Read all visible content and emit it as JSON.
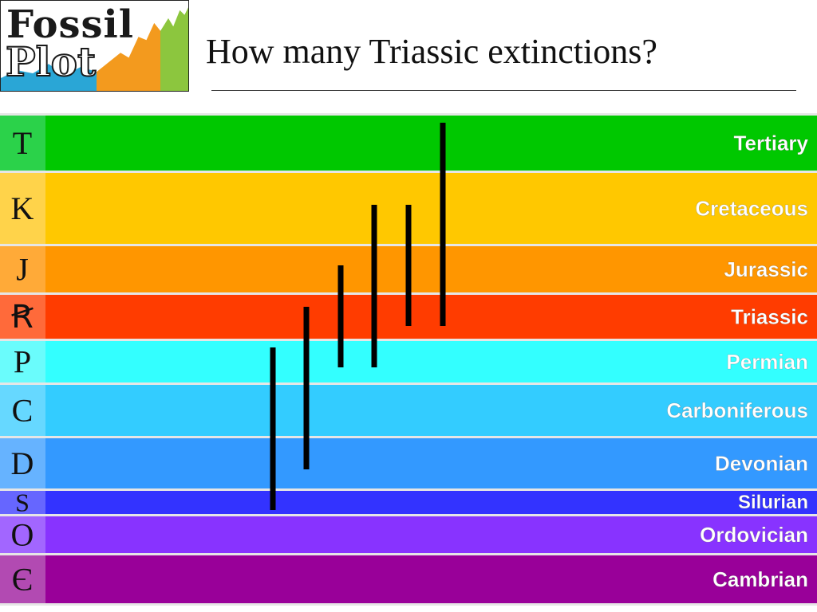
{
  "logo": {
    "word1": "Fossil",
    "word2": "Plot"
  },
  "title": "How many Triassic extinctions?",
  "chart_data": {
    "type": "range-chart",
    "title": "How many Triassic extinctions?",
    "periods": [
      {
        "abbr": "T",
        "name": "Tertiary",
        "color": "#00c800",
        "side_color": "#2bd24a"
      },
      {
        "abbr": "K",
        "name": "Cretaceous",
        "color": "#ffc800",
        "side_color": "#ffd34a"
      },
      {
        "abbr": "J",
        "name": "Jurassic",
        "color": "#ff9600",
        "side_color": "#ffaa38"
      },
      {
        "abbr": "Ꞧ",
        "name": "Triassic",
        "color": "#ff3c00",
        "side_color": "#ff6a3a"
      },
      {
        "abbr": "P",
        "name": "Permian",
        "color": "#33ffff",
        "side_color": "#6afcfc"
      },
      {
        "abbr": "C",
        "name": "Carboniferous",
        "color": "#33ccff",
        "side_color": "#66d8ff"
      },
      {
        "abbr": "D",
        "name": "Devonian",
        "color": "#3399ff",
        "side_color": "#66b3ff"
      },
      {
        "abbr": "S",
        "name": "Silurian",
        "color": "#3333ff",
        "side_color": "#6666ff"
      },
      {
        "abbr": "O",
        "name": "Ordovician",
        "color": "#8833ff",
        "side_color": "#a266ff"
      },
      {
        "abbr": "Є",
        "name": "Cambrian",
        "color": "#990099",
        "side_color": "#b24ab2"
      }
    ],
    "ranges": [
      {
        "from": "Silurian",
        "to": "Permian"
      },
      {
        "from": "Devonian",
        "to": "Triassic"
      },
      {
        "from": "Permian",
        "to": "Jurassic"
      },
      {
        "from": "Permian",
        "to": "Cretaceous"
      },
      {
        "from": "Triassic",
        "to": "Cretaceous"
      },
      {
        "from": "Triassic",
        "to": "Tertiary"
      }
    ]
  }
}
